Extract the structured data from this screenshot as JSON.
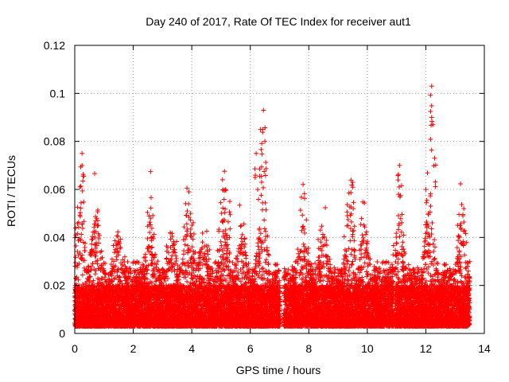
{
  "chart_data": {
    "type": "scatter",
    "title": "Day 240 of 2017, Rate Of TEC Index for receiver aut1",
    "xlabel": "GPS time / hours",
    "ylabel": "ROTI / TECUs",
    "xlim": [
      0,
      14
    ],
    "ylim": [
      0,
      0.12
    ],
    "grid": true,
    "legend": "none",
    "marker": "+",
    "point_color": "#ff0000",
    "xticks": [
      0,
      2,
      4,
      6,
      8,
      10,
      12,
      14
    ],
    "xtick_labels": [
      "0",
      "2",
      "4",
      "6",
      "8",
      "10",
      "12",
      "14"
    ],
    "yticks": [
      0,
      0.02,
      0.04,
      0.06,
      0.08,
      0.1,
      0.12
    ],
    "ytick_labels": [
      "0",
      "0.02",
      "0.04",
      "0.06",
      "0.08",
      "0.1",
      "0.12"
    ],
    "series": [
      {
        "name": "ROTI",
        "x_range_hours": [
          0.0,
          13.5
        ],
        "sampling_interval_hours": 0.008,
        "note": "dense scatter; baseline mostly 0.003-0.02 TECU/min with bursts to 0.03-0.05",
        "peaks": [
          {
            "x": 0.25,
            "y": 0.075
          },
          {
            "x": 0.25,
            "y": 0.07
          },
          {
            "x": 0.75,
            "y": 0.048
          },
          {
            "x": 2.6,
            "y": 0.048
          },
          {
            "x": 3.9,
            "y": 0.059
          },
          {
            "x": 5.05,
            "y": 0.064
          },
          {
            "x": 5.3,
            "y": 0.055
          },
          {
            "x": 6.2,
            "y": 0.075
          },
          {
            "x": 6.35,
            "y": 0.085
          },
          {
            "x": 6.45,
            "y": 0.093
          },
          {
            "x": 6.5,
            "y": 0.08
          },
          {
            "x": 9.5,
            "y": 0.063
          },
          {
            "x": 11.1,
            "y": 0.07
          },
          {
            "x": 12.0,
            "y": 0.06
          },
          {
            "x": 12.2,
            "y": 0.103
          },
          {
            "x": 12.2,
            "y": 0.09
          },
          {
            "x": 12.3,
            "y": 0.073
          },
          {
            "x": 13.3,
            "y": 0.052
          }
        ]
      }
    ]
  }
}
